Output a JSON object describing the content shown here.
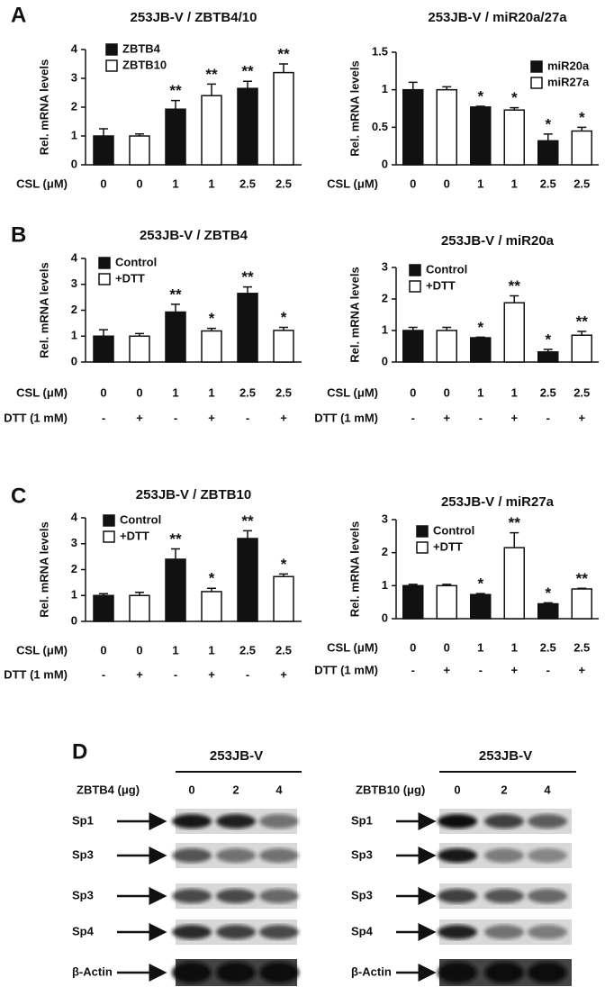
{
  "panel_labels": [
    "A",
    "B",
    "C",
    "D"
  ],
  "chart_data": [
    {
      "type": "bar",
      "title": "253JB-V / ZBTB4/10",
      "ylabel": "Rel. mRNA levels",
      "xlabel": "CSL (μM)",
      "categories": [
        "0",
        "0",
        "1",
        "1",
        "2.5",
        "2.5"
      ],
      "ylim": [
        0,
        4
      ],
      "yticks": [
        0,
        1,
        2,
        3,
        4
      ],
      "series": [
        {
          "name": "ZBTB4",
          "color": "#111111",
          "values": [
            1,
            null,
            1.93,
            null,
            2.65,
            null
          ],
          "errors": [
            0.25,
            null,
            0.3,
            null,
            0.25,
            null
          ]
        },
        {
          "name": "ZBTB10",
          "color": "#ffffff",
          "values": [
            null,
            1,
            null,
            2.4,
            null,
            3.2
          ],
          "errors": [
            null,
            0.07,
            null,
            0.4,
            null,
            0.3
          ]
        }
      ],
      "annotations": [
        null,
        null,
        "**",
        "**",
        "**",
        "**"
      ]
    },
    {
      "type": "bar",
      "title": "253JB-V / miR20a/27a",
      "ylabel": "Rel. mRNA levels",
      "xlabel": "CSL (μM)",
      "categories": [
        "0",
        "0",
        "1",
        "1",
        "2.5",
        "2.5"
      ],
      "ylim": [
        0,
        1.5
      ],
      "yticks": [
        0,
        0.5,
        1,
        1.5
      ],
      "series": [
        {
          "name": "miR20a",
          "color": "#111111",
          "values": [
            1,
            null,
            0.77,
            null,
            0.32,
            null
          ],
          "errors": [
            0.1,
            null,
            0.01,
            null,
            0.09,
            null
          ]
        },
        {
          "name": "miR27a",
          "color": "#ffffff",
          "values": [
            null,
            1,
            null,
            0.73,
            null,
            0.45
          ],
          "errors": [
            null,
            0.04,
            null,
            0.03,
            null,
            0.05
          ]
        }
      ],
      "annotations": [
        null,
        null,
        "*",
        "*",
        "*",
        "*"
      ]
    },
    {
      "type": "bar",
      "title": "253JB-V / ZBTB4",
      "ylabel": "Rel. mRNA levels",
      "xlabel": "CSL (μM)",
      "xlabel2": "DTT (1 mM)",
      "categories": [
        "0",
        "0",
        "1",
        "1",
        "2.5",
        "2.5"
      ],
      "categories2": [
        "-",
        "+",
        "-",
        "+",
        "-",
        "+"
      ],
      "ylim": [
        0,
        4
      ],
      "yticks": [
        0,
        1,
        2,
        3,
        4
      ],
      "series": [
        {
          "name": "Control",
          "color": "#111111",
          "values": [
            1,
            null,
            1.93,
            null,
            2.65,
            null
          ],
          "errors": [
            0.25,
            null,
            0.3,
            null,
            0.25,
            null
          ]
        },
        {
          "name": "+DTT",
          "color": "#ffffff",
          "values": [
            null,
            1,
            null,
            1.2,
            null,
            1.22
          ],
          "errors": [
            null,
            0.1,
            null,
            0.1,
            null,
            0.12
          ]
        }
      ],
      "annotations": [
        null,
        null,
        "**",
        "*",
        "**",
        "*"
      ]
    },
    {
      "type": "bar",
      "title": "253JB-V / miR20a",
      "ylabel": "Rel. mRNA levels",
      "xlabel": "CSL (μM)",
      "xlabel2": "DTT (1 mM)",
      "categories": [
        "0",
        "0",
        "1",
        "1",
        "2.5",
        "2.5"
      ],
      "categories2": [
        "-",
        "+",
        "-",
        "+",
        "-",
        "+"
      ],
      "ylim": [
        0,
        3
      ],
      "yticks": [
        0,
        1,
        2,
        3
      ],
      "series": [
        {
          "name": "Control",
          "color": "#111111",
          "values": [
            1,
            null,
            0.77,
            null,
            0.32,
            null
          ],
          "errors": [
            0.1,
            null,
            0.02,
            null,
            0.08,
            null
          ]
        },
        {
          "name": "+DTT",
          "color": "#ffffff",
          "values": [
            null,
            1,
            null,
            1.88,
            null,
            0.85
          ],
          "errors": [
            null,
            0.1,
            null,
            0.22,
            null,
            0.12
          ]
        }
      ],
      "annotations": [
        null,
        null,
        "*",
        "**",
        "*",
        "**"
      ]
    },
    {
      "type": "bar",
      "title": "253JB-V / ZBTB10",
      "ylabel": "Rel. mRNA levels",
      "xlabel": "CSL (μM)",
      "xlabel2": "DTT (1 mM)",
      "categories": [
        "0",
        "0",
        "1",
        "1",
        "2.5",
        "2.5"
      ],
      "categories2": [
        "-",
        "+",
        "-",
        "+",
        "-",
        "+"
      ],
      "ylim": [
        0,
        4
      ],
      "yticks": [
        0,
        1,
        2,
        3,
        4
      ],
      "series": [
        {
          "name": "Control",
          "color": "#111111",
          "values": [
            1,
            null,
            2.4,
            null,
            3.2,
            null
          ],
          "errors": [
            0.07,
            null,
            0.4,
            null,
            0.3,
            null
          ]
        },
        {
          "name": "+DTT",
          "color": "#ffffff",
          "values": [
            null,
            1,
            null,
            1.15,
            null,
            1.73
          ],
          "errors": [
            null,
            0.12,
            null,
            0.13,
            null,
            0.1
          ]
        }
      ],
      "annotations": [
        null,
        null,
        "**",
        "*",
        "**",
        "*"
      ]
    },
    {
      "type": "bar",
      "title": "253JB-V / miR27a",
      "ylabel": "Rel. mRNA levels",
      "xlabel": "CSL (μM)",
      "xlabel2": "DTT (1 mM)",
      "categories": [
        "0",
        "0",
        "1",
        "1",
        "2.5",
        "2.5"
      ],
      "categories2": [
        "-",
        "+",
        "-",
        "+",
        "-",
        "+"
      ],
      "ylim": [
        0,
        3
      ],
      "yticks": [
        0,
        1,
        2,
        3
      ],
      "series": [
        {
          "name": "Control",
          "color": "#111111",
          "values": [
            1,
            null,
            0.73,
            null,
            0.45,
            null
          ],
          "errors": [
            0.04,
            null,
            0.03,
            null,
            0.03,
            null
          ]
        },
        {
          "name": "+DTT",
          "color": "#ffffff",
          "values": [
            null,
            1,
            null,
            2.15,
            null,
            0.9
          ],
          "errors": [
            null,
            0.04,
            null,
            0.45,
            null,
            0.02
          ]
        }
      ],
      "annotations": [
        null,
        null,
        "*",
        "**",
        "*",
        "**"
      ]
    }
  ],
  "blots": [
    {
      "cell_line": "253JB-V",
      "treatment": "ZBTB4 (μg)",
      "doses": [
        "0",
        "2",
        "4"
      ],
      "rows": [
        "Sp1",
        "Sp3",
        "Sp3",
        "Sp4",
        "β-Actin"
      ]
    },
    {
      "cell_line": "253JB-V",
      "treatment": "ZBTB10 (μg)",
      "doses": [
        "0",
        "2",
        "4"
      ],
      "rows": [
        "Sp1",
        "Sp3",
        "Sp3",
        "Sp4",
        "β-Actin"
      ]
    }
  ]
}
